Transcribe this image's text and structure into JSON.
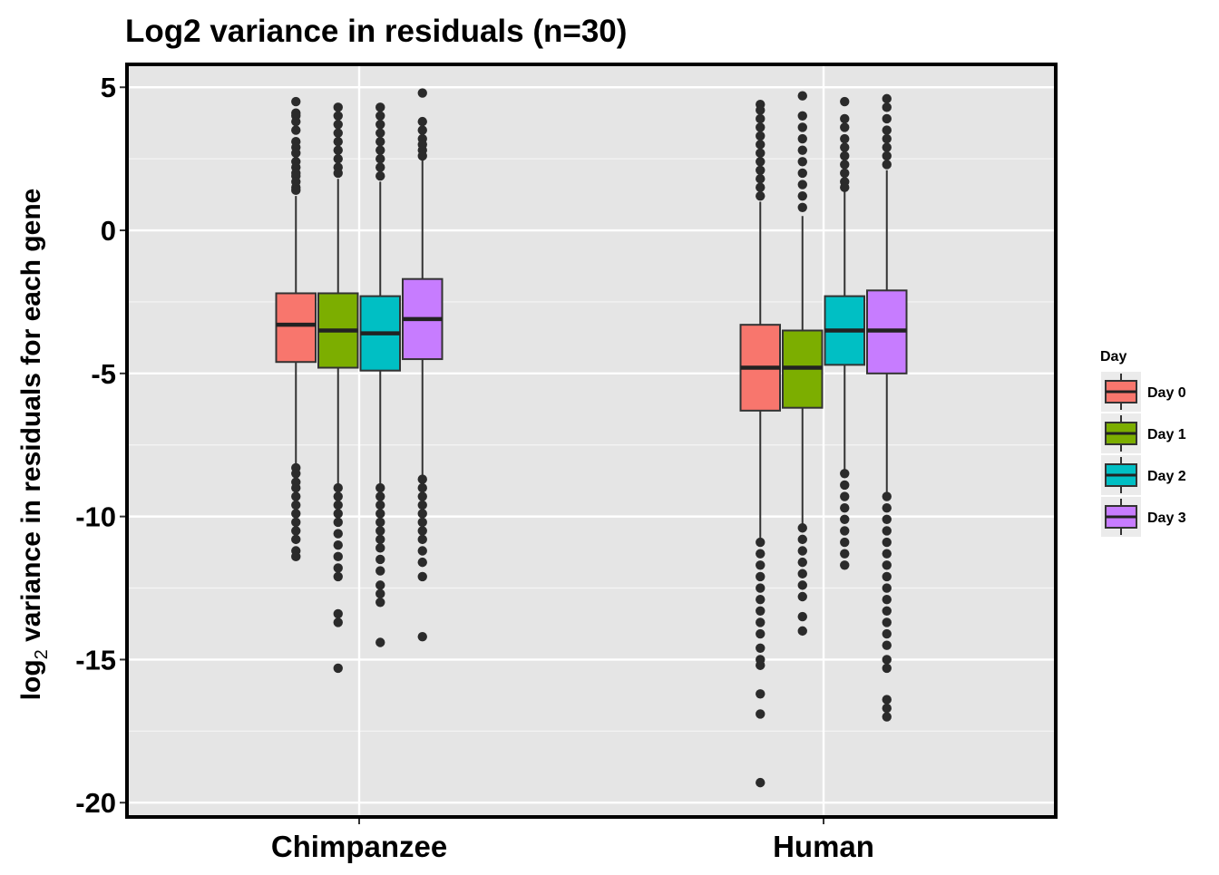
{
  "chart_data": {
    "type": "boxplot",
    "title": "Log2 variance in residuals (n=30)",
    "xlabel": "",
    "ylabel_prefix": "log",
    "ylabel_subscript": "2",
    "ylabel_suffix": " variance in residuals for each gene",
    "ylim": [
      -20.5,
      5.8
    ],
    "yticks": [
      5,
      0,
      -5,
      -10,
      -15,
      -20
    ],
    "ytick_labels": [
      "5",
      "0",
      "-5",
      "-10",
      "-15",
      "-20"
    ],
    "categories": [
      "Chimpanzee",
      "Human"
    ],
    "grid": true,
    "legend": {
      "title": "Day",
      "position": "right",
      "entries": [
        "Day 0",
        "Day 1",
        "Day 2",
        "Day 3"
      ]
    },
    "series": [
      {
        "name": "Day 0",
        "color": "#F8766D",
        "boxes": [
          {
            "category": "Chimpanzee",
            "q1": -4.6,
            "median": -3.3,
            "q3": -2.2,
            "whisker_low": -8.2,
            "whisker_high": 1.2,
            "outliers": [
              4.5,
              4.1,
              4.0,
              3.8,
              3.5,
              3.1,
              2.9,
              2.7,
              2.4,
              2.2,
              2.0,
              1.9,
              1.7,
              1.5,
              1.4,
              -8.3,
              -8.5,
              -8.8,
              -9.0,
              -9.3,
              -9.6,
              -9.9,
              -10.2,
              -10.5,
              -10.8,
              -11.2,
              -11.4
            ]
          },
          {
            "category": "Human",
            "q1": -6.3,
            "median": -4.8,
            "q3": -3.3,
            "whisker_low": -10.8,
            "whisker_high": 1.0,
            "outliers": [
              4.4,
              4.2,
              3.9,
              3.6,
              3.3,
              3.0,
              2.7,
              2.4,
              2.1,
              1.8,
              1.5,
              1.2,
              -10.9,
              -11.3,
              -11.7,
              -12.1,
              -12.5,
              -12.9,
              -13.3,
              -13.7,
              -14.1,
              -14.6,
              -15.0,
              -15.2,
              -16.2,
              -16.9,
              -19.3
            ]
          }
        ]
      },
      {
        "name": "Day 1",
        "color": "#7CAE00",
        "boxes": [
          {
            "category": "Chimpanzee",
            "q1": -4.8,
            "median": -3.5,
            "q3": -2.2,
            "whisker_low": -8.9,
            "whisker_high": 1.8,
            "outliers": [
              4.3,
              4.0,
              3.7,
              3.4,
              3.1,
              2.8,
              2.5,
              2.2,
              2.0,
              -9.0,
              -9.3,
              -9.6,
              -9.9,
              -10.2,
              -10.6,
              -11.0,
              -11.4,
              -11.8,
              -12.1,
              -13.4,
              -13.7,
              -15.3
            ]
          },
          {
            "category": "Human",
            "q1": -6.2,
            "median": -4.8,
            "q3": -3.5,
            "whisker_low": -10.3,
            "whisker_high": 0.5,
            "outliers": [
              4.7,
              4.0,
              3.6,
              3.2,
              2.8,
              2.4,
              2.0,
              1.6,
              1.2,
              0.8,
              -10.4,
              -10.8,
              -11.2,
              -11.6,
              -12.0,
              -12.4,
              -12.8,
              -13.5,
              -14.0
            ]
          }
        ]
      },
      {
        "name": "Day 2",
        "color": "#00BFC4",
        "boxes": [
          {
            "category": "Chimpanzee",
            "q1": -4.9,
            "median": -3.6,
            "q3": -2.3,
            "whisker_low": -8.9,
            "whisker_high": 1.7,
            "outliers": [
              4.3,
              4.0,
              3.7,
              3.4,
              3.1,
              2.8,
              2.5,
              2.2,
              1.9,
              -9.0,
              -9.3,
              -9.6,
              -9.9,
              -10.2,
              -10.5,
              -10.8,
              -11.1,
              -11.5,
              -11.9,
              -12.4,
              -12.7,
              -13.0,
              -14.4
            ]
          },
          {
            "category": "Human",
            "q1": -4.7,
            "median": -3.5,
            "q3": -2.3,
            "whisker_low": -8.4,
            "whisker_high": 1.4,
            "outliers": [
              4.5,
              3.9,
              3.6,
              3.2,
              2.9,
              2.6,
              2.3,
              2.0,
              1.7,
              1.5,
              -8.5,
              -8.9,
              -9.3,
              -9.7,
              -10.1,
              -10.5,
              -10.9,
              -11.3,
              -11.7
            ]
          }
        ]
      },
      {
        "name": "Day 3",
        "color": "#C77CFF",
        "boxes": [
          {
            "category": "Chimpanzee",
            "q1": -4.5,
            "median": -3.1,
            "q3": -1.7,
            "whisker_low": -8.6,
            "whisker_high": 2.5,
            "outliers": [
              4.8,
              3.8,
              3.5,
              3.2,
              3.0,
              2.8,
              2.6,
              -8.7,
              -9.0,
              -9.3,
              -9.6,
              -9.9,
              -10.2,
              -10.5,
              -10.8,
              -11.2,
              -11.6,
              -12.1,
              -14.2
            ]
          },
          {
            "category": "Human",
            "q1": -5.0,
            "median": -3.5,
            "q3": -2.1,
            "whisker_low": -9.2,
            "whisker_high": 2.1,
            "outliers": [
              4.6,
              4.3,
              3.9,
              3.5,
              3.2,
              2.9,
              2.6,
              2.3,
              -9.3,
              -9.7,
              -10.1,
              -10.5,
              -10.9,
              -11.3,
              -11.7,
              -12.1,
              -12.5,
              -12.9,
              -13.3,
              -13.7,
              -14.1,
              -14.5,
              -15.0,
              -15.3,
              -16.4,
              -16.7,
              -17.0
            ]
          }
        ]
      }
    ]
  }
}
